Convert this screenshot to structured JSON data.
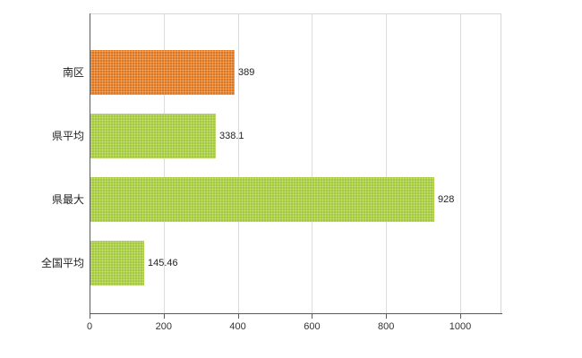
{
  "chart_data": {
    "type": "bar",
    "orientation": "horizontal",
    "title": "",
    "xlabel": "",
    "ylabel": "",
    "categories": [
      "南区",
      "県平均",
      "県最大",
      "全国平均"
    ],
    "values": [
      389,
      338.1,
      928,
      145.46
    ],
    "value_labels": [
      "389",
      "338.1",
      "928",
      "145.46"
    ],
    "bar_colors": [
      "#e0761d",
      "#a4c939",
      "#a4c939",
      "#a4c939"
    ],
    "xlim": [
      0,
      1111
    ],
    "x_ticks": [
      0,
      200,
      400,
      600,
      800,
      1000
    ],
    "grid": "vertical-gridlines",
    "legend": "none",
    "background_color": "#ffffff",
    "gridline_color": "#dcdcdc",
    "axis_color": "#5a5a5a"
  }
}
